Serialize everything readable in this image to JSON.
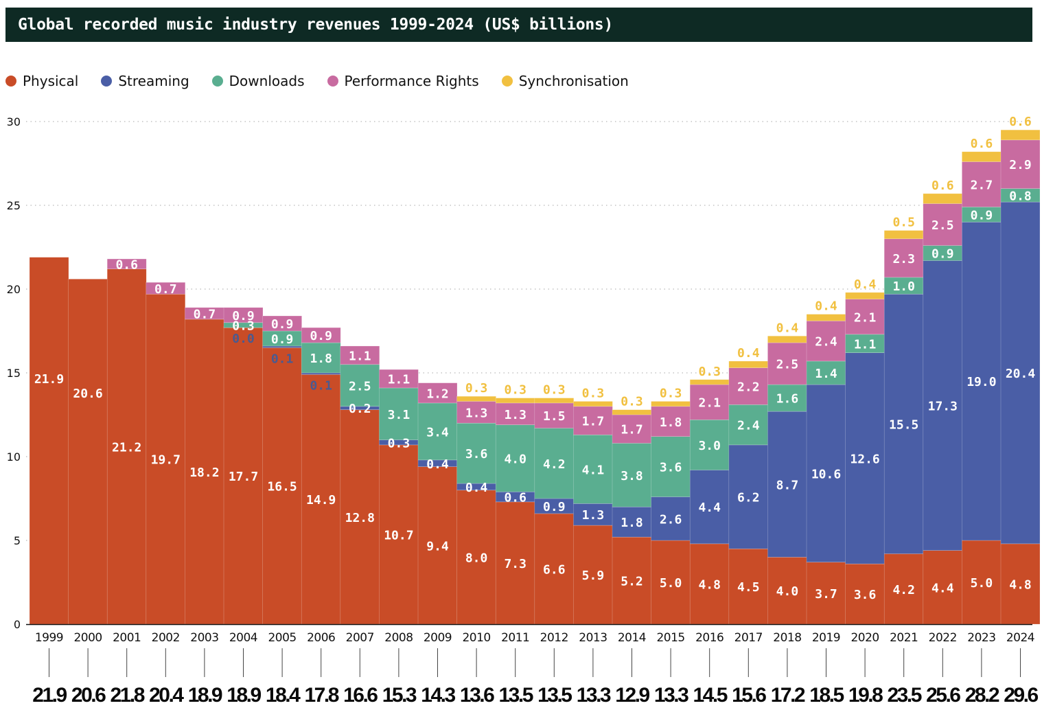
{
  "header": {
    "title": "Global recorded music industry revenues 1999-2024 (US$ billions)"
  },
  "colors": {
    "physical": "#c94c27",
    "streaming": "#4a5ea6",
    "downloads": "#5aae90",
    "performance": "#c86ba0",
    "sync": "#f1c040",
    "title_bg": "#0e2a24",
    "tiny_label": "#4a5a90"
  },
  "legend": [
    {
      "key": "physical",
      "label": "Physical"
    },
    {
      "key": "streaming",
      "label": "Streaming"
    },
    {
      "key": "downloads",
      "label": "Downloads"
    },
    {
      "key": "performance",
      "label": "Performance Rights"
    },
    {
      "key": "sync",
      "label": "Synchronisation"
    }
  ],
  "chart_data": {
    "type": "bar",
    "stacked": true,
    "title": "Global recorded music industry revenues 1999-2024 (US$ billions)",
    "xlabel": "",
    "ylabel": "",
    "ylim": [
      0,
      30
    ],
    "yticks": [
      0,
      5,
      10,
      15,
      20,
      25,
      30
    ],
    "grid": "horizontal dotted",
    "legend_position": "top-left",
    "categories": [
      "1999",
      "2000",
      "2001",
      "2002",
      "2003",
      "2004",
      "2005",
      "2006",
      "2007",
      "2008",
      "2009",
      "2010",
      "2011",
      "2012",
      "2013",
      "2014",
      "2015",
      "2016",
      "2017",
      "2018",
      "2019",
      "2020",
      "2021",
      "2022",
      "2023",
      "2024"
    ],
    "series": [
      {
        "key": "physical",
        "name": "Physical",
        "values": [
          21.9,
          20.6,
          21.2,
          19.7,
          18.2,
          17.7,
          16.5,
          14.9,
          12.8,
          10.7,
          9.4,
          8.0,
          7.3,
          6.6,
          5.9,
          5.2,
          5.0,
          4.8,
          4.5,
          4.0,
          3.7,
          3.6,
          4.2,
          4.4,
          5.0,
          4.8
        ]
      },
      {
        "key": "streaming",
        "name": "Streaming",
        "values": [
          null,
          null,
          null,
          null,
          null,
          0.0,
          0.1,
          0.1,
          0.2,
          0.3,
          0.4,
          0.4,
          0.6,
          0.9,
          1.3,
          1.8,
          2.6,
          4.4,
          6.2,
          8.7,
          10.6,
          12.6,
          15.5,
          17.3,
          19.0,
          20.4
        ]
      },
      {
        "key": "downloads",
        "name": "Downloads",
        "values": [
          null,
          null,
          null,
          null,
          null,
          0.3,
          0.9,
          1.8,
          2.5,
          3.1,
          3.4,
          3.6,
          4.0,
          4.2,
          4.1,
          3.8,
          3.6,
          3.0,
          2.4,
          1.6,
          1.4,
          1.1,
          1.0,
          0.9,
          0.9,
          0.8
        ]
      },
      {
        "key": "performance",
        "name": "Performance Rights",
        "values": [
          null,
          null,
          0.6,
          0.7,
          0.7,
          0.9,
          0.9,
          0.9,
          1.1,
          1.1,
          1.2,
          1.3,
          1.3,
          1.5,
          1.7,
          1.7,
          1.8,
          2.1,
          2.2,
          2.5,
          2.4,
          2.1,
          2.3,
          2.5,
          2.7,
          2.9
        ]
      },
      {
        "key": "sync",
        "name": "Synchronisation",
        "values": [
          null,
          null,
          null,
          null,
          null,
          null,
          null,
          null,
          null,
          null,
          null,
          0.3,
          0.3,
          0.3,
          0.3,
          0.3,
          0.3,
          0.3,
          0.4,
          0.4,
          0.4,
          0.4,
          0.5,
          0.6,
          0.6,
          0.6
        ]
      }
    ],
    "totals": [
      21.9,
      20.6,
      21.8,
      20.4,
      18.9,
      18.9,
      18.4,
      17.8,
      16.6,
      15.3,
      14.3,
      13.6,
      13.5,
      13.5,
      13.3,
      12.9,
      13.3,
      14.5,
      15.6,
      17.2,
      18.5,
      19.8,
      23.5,
      25.6,
      28.2,
      29.6
    ]
  }
}
